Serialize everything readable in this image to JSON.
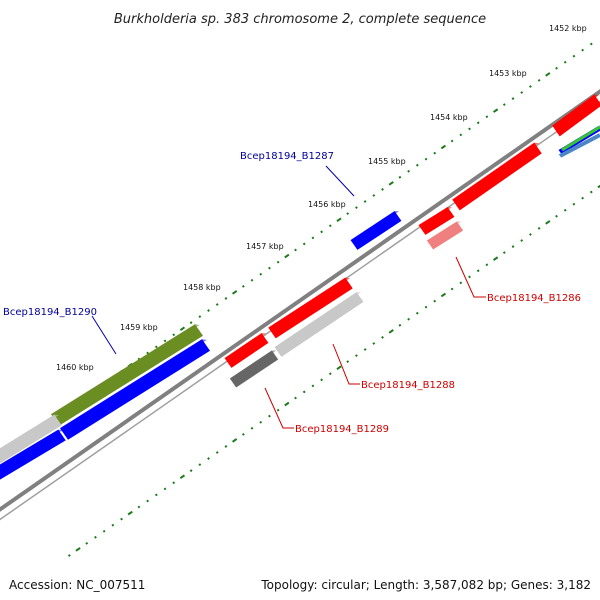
{
  "title": "Burkholderia sp. 383 chromosome 2, complete sequence",
  "scale": {
    "unit_label": "kbp",
    "ticks": [
      "1452 kbp",
      "1453 kbp",
      "1454 kbp",
      "1455 kbp",
      "1456 kbp",
      "1457 kbp",
      "1458 kbp",
      "1459 kbp",
      "1460 kbp"
    ]
  },
  "colors": {
    "backbone": "#808080",
    "tick": "#1a7a1a",
    "forward_cds": "#ff0000",
    "reverse_cds": "#0000ff",
    "gray_feature": "#c8c8c8",
    "dark_feature": "#666666",
    "olive_feature": "#6b8e23",
    "light_red_feature": "#f08080",
    "label_red": "#cc0000",
    "label_blue": "#000099"
  },
  "gene_labels": [
    {
      "name": "Bcep18194_B1287",
      "color": "blue"
    },
    {
      "name": "Bcep18194_B1286",
      "color": "red"
    },
    {
      "name": "Bcep18194_B1290",
      "color": "blue"
    },
    {
      "name": "Bcep18194_B1288",
      "color": "red"
    },
    {
      "name": "Bcep18194_B1289",
      "color": "red"
    }
  ],
  "footer": {
    "accession": "Accession: NC_007511",
    "stats": "Topology: circular; Length: 3,587,082 bp; Genes: 3,182"
  }
}
